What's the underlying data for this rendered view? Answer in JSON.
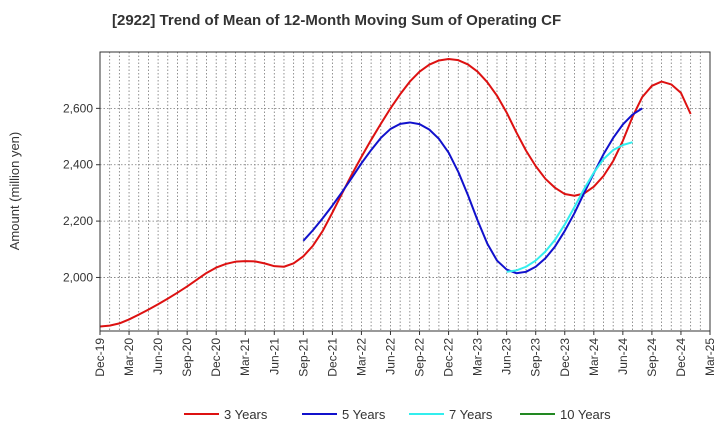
{
  "chart_data": {
    "type": "line",
    "title": "[2922]  Trend of Mean of 12-Month Moving Sum of Operating CF",
    "ylabel": "Amount (million yen)",
    "xlabel": "",
    "ylim": [
      1810,
      2800
    ],
    "yticks": [
      2000,
      2200,
      2400,
      2600
    ],
    "ytick_labels": [
      "2,000",
      "2,200",
      "2,400",
      "2,600"
    ],
    "x_start": "Dec-19",
    "x_months": 63,
    "xtick_labels": [
      "Dec-19",
      "Mar-20",
      "Jun-20",
      "Sep-20",
      "Dec-20",
      "Mar-21",
      "Jun-21",
      "Sep-21",
      "Dec-21",
      "Mar-22",
      "Jun-22",
      "Sep-22",
      "Dec-22",
      "Mar-23",
      "Jun-23",
      "Sep-23",
      "Dec-23",
      "Mar-24",
      "Jun-24",
      "Sep-24",
      "Dec-24",
      "Mar-25"
    ],
    "grid": true,
    "legend_position": "bottom",
    "series": [
      {
        "name": "3 Years",
        "color": "#dd1111",
        "start_index": 0,
        "values": [
          1826,
          1829,
          1837,
          1851,
          1868,
          1886,
          1905,
          1925,
          1946,
          1968,
          1992,
          2016,
          2035,
          2048,
          2056,
          2058,
          2057,
          2050,
          2040,
          2038,
          2050,
          2075,
          2113,
          2165,
          2230,
          2298,
          2365,
          2428,
          2488,
          2545,
          2600,
          2650,
          2695,
          2730,
          2755,
          2770,
          2775,
          2771,
          2756,
          2730,
          2693,
          2645,
          2585,
          2515,
          2450,
          2395,
          2350,
          2318,
          2296,
          2290,
          2298,
          2322,
          2360,
          2413,
          2485,
          2570,
          2640,
          2680,
          2695,
          2685,
          2655,
          2580
        ]
      },
      {
        "name": "5 Years",
        "color": "#1111cc",
        "start_index": 21,
        "values": [
          2130,
          2168,
          2210,
          2255,
          2303,
          2353,
          2405,
          2452,
          2495,
          2527,
          2545,
          2550,
          2544,
          2525,
          2492,
          2443,
          2375,
          2292,
          2202,
          2120,
          2060,
          2028,
          2015,
          2020,
          2038,
          2068,
          2110,
          2165,
          2228,
          2300,
          2370,
          2437,
          2495,
          2543,
          2578,
          2600
        ]
      },
      {
        "name": "7 Years",
        "color": "#33eeee",
        "start_index": 42,
        "values": [
          2020,
          2025,
          2038,
          2060,
          2092,
          2134,
          2188,
          2250,
          2314,
          2372,
          2420,
          2452,
          2470,
          2480
        ]
      },
      {
        "name": "10 Years",
        "color": "#228822",
        "start_index": 0,
        "values": []
      }
    ]
  }
}
